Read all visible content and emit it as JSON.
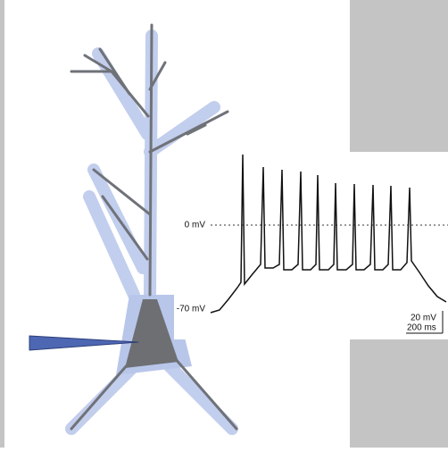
{
  "trace": {
    "zero_label": "0 mV",
    "rest_label": "-70 mV",
    "scale_voltage": "20 mV",
    "scale_time": "200 ms"
  }
}
